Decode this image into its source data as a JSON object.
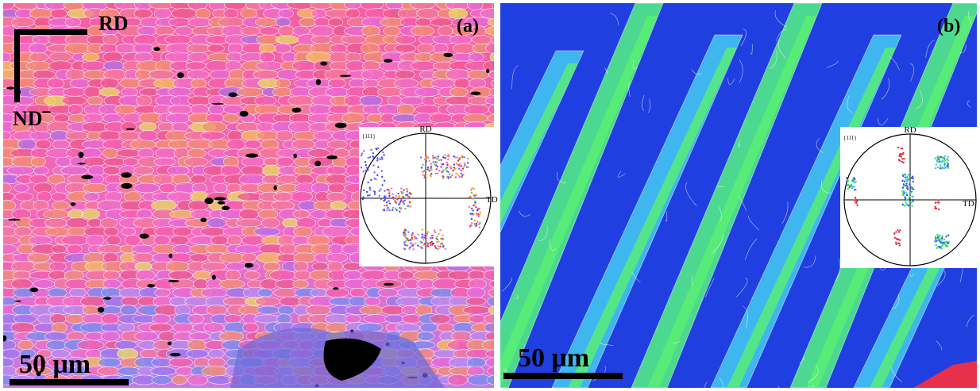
{
  "panels": [
    {
      "label": "(a)",
      "scale_bar": "50 μm",
      "axes": {
        "horizontal": "RD",
        "vertical": "ND"
      },
      "pole_figure": {
        "family": "{111}",
        "top": "RD",
        "right": "TD"
      }
    },
    {
      "label": "(b)",
      "scale_bar": "50 μm",
      "pole_figure": {
        "family": "{111}",
        "top": "RD",
        "right": "TD"
      }
    }
  ]
}
